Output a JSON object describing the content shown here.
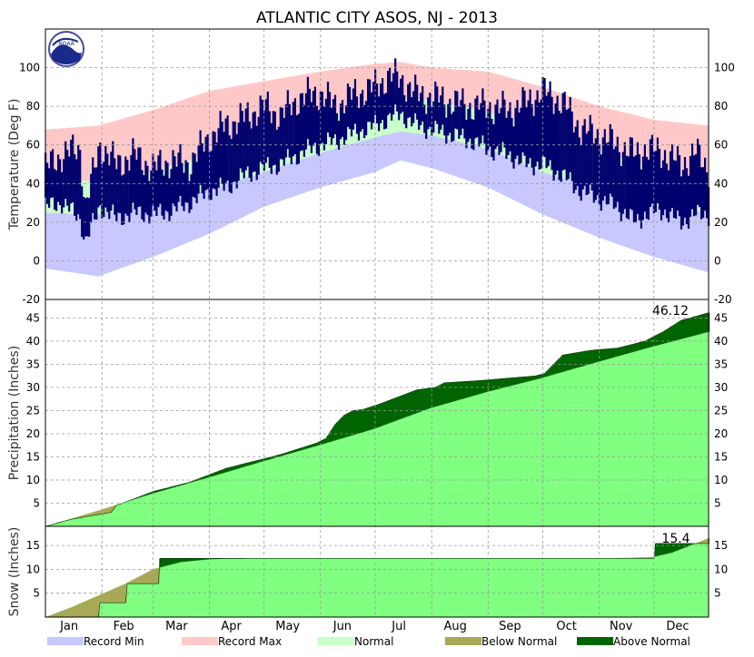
{
  "title": "ATLANTIC CITY  ASOS, NJ - 2013",
  "logo_text": "NOAA",
  "colors": {
    "record_min": "#c8c8ff",
    "record_max": "#ffc8c8",
    "normal_band": "#c8ffc8",
    "normal_fill": "#80ff80",
    "below_normal": "#a8a855",
    "above_normal": "#006400",
    "observed": "#00006e",
    "grid": "#999999"
  },
  "months": [
    "Jan",
    "Feb",
    "Mar",
    "Apr",
    "May",
    "Jun",
    "Jul",
    "Aug",
    "Sep",
    "Oct",
    "Nov",
    "Dec"
  ],
  "legend": [
    {
      "label": "Record Min",
      "color": "#c8c8ff"
    },
    {
      "label": "Record Max",
      "color": "#ffc8c8"
    },
    {
      "label": "Normal",
      "color": "#c8ffc8"
    },
    {
      "label": "Below Normal",
      "color": "#a8a855"
    },
    {
      "label": "Above Normal",
      "color": "#006400"
    }
  ],
  "chart_data": [
    {
      "type": "area",
      "panel": "temperature",
      "ylabel": "Temperature (Deg F)",
      "ylim": [
        -20,
        120
      ],
      "yticks": [
        -20,
        0,
        20,
        40,
        60,
        80,
        100
      ],
      "grid": true,
      "x_unit": "day of year",
      "xlim": [
        1,
        365
      ],
      "normal_high_days": [
        1,
        30,
        60,
        91,
        121,
        152,
        182,
        196,
        213,
        244,
        274,
        305,
        335,
        365
      ],
      "normal_high": [
        42,
        41,
        46,
        55,
        65,
        74,
        82,
        84,
        83,
        77,
        67,
        57,
        47,
        42
      ],
      "normal_low_days": [
        1,
        30,
        60,
        91,
        121,
        152,
        182,
        196,
        213,
        244,
        274,
        305,
        335,
        365
      ],
      "normal_low": [
        25,
        24,
        29,
        37,
        46,
        56,
        64,
        67,
        65,
        58,
        46,
        37,
        29,
        25
      ],
      "record_high_days": [
        1,
        30,
        60,
        91,
        121,
        152,
        182,
        196,
        213,
        244,
        274,
        305,
        335,
        365
      ],
      "record_high": [
        68,
        70,
        78,
        88,
        93,
        98,
        102,
        103,
        100,
        98,
        90,
        80,
        73,
        70
      ],
      "record_low_days": [
        1,
        30,
        60,
        91,
        121,
        152,
        182,
        196,
        213,
        244,
        274,
        305,
        335,
        365
      ],
      "record_low": [
        -4,
        -8,
        2,
        14,
        28,
        38,
        46,
        52,
        48,
        38,
        24,
        12,
        2,
        -6
      ],
      "observed_high_days": [
        1,
        10,
        20,
        23,
        31,
        40,
        50,
        60,
        70,
        80,
        91,
        100,
        110,
        121,
        130,
        140,
        152,
        160,
        170,
        182,
        190,
        196,
        205,
        213,
        225,
        235,
        244,
        255,
        265,
        274,
        285,
        295,
        305,
        315,
        325,
        330,
        340,
        350,
        358,
        365
      ],
      "observed_high": [
        48,
        55,
        58,
        28,
        60,
        50,
        55,
        48,
        52,
        50,
        64,
        70,
        74,
        80,
        75,
        84,
        87,
        80,
        86,
        90,
        96,
        94,
        86,
        85,
        82,
        80,
        80,
        78,
        82,
        88,
        82,
        68,
        65,
        60,
        55,
        58,
        56,
        50,
        56,
        48
      ],
      "observed_low_days": [
        1,
        10,
        20,
        23,
        31,
        40,
        50,
        60,
        70,
        80,
        91,
        100,
        110,
        121,
        130,
        140,
        152,
        160,
        170,
        182,
        190,
        196,
        205,
        213,
        225,
        235,
        244,
        255,
        265,
        274,
        285,
        295,
        305,
        315,
        325,
        330,
        340,
        350,
        358,
        365
      ],
      "observed_low": [
        28,
        30,
        22,
        10,
        28,
        22,
        25,
        24,
        26,
        30,
        36,
        38,
        44,
        48,
        50,
        55,
        60,
        62,
        66,
        70,
        74,
        76,
        70,
        68,
        65,
        62,
        58,
        55,
        50,
        50,
        44,
        36,
        32,
        28,
        20,
        24,
        26,
        20,
        24,
        24
      ]
    },
    {
      "type": "area",
      "panel": "precipitation",
      "ylabel": "Precipitation (Inches)",
      "ylim": [
        0,
        49
      ],
      "yticks": [
        5,
        10,
        15,
        20,
        25,
        30,
        35,
        40,
        45
      ],
      "grid": true,
      "annotation": "46.12",
      "x_unit": "day of year",
      "xlim": [
        1,
        365
      ],
      "normal_cumulative_days": [
        1,
        31,
        59,
        90,
        120,
        151,
        181,
        212,
        243,
        273,
        304,
        334,
        365
      ],
      "normal_cumulative": [
        0,
        3.5,
        7,
        10.5,
        14,
        17.5,
        21,
        25.5,
        29,
        32,
        35.5,
        38.8,
        42
      ],
      "observed_cumulative_days": [
        1,
        15,
        25,
        37,
        40,
        60,
        80,
        90,
        100,
        115,
        130,
        150,
        155,
        160,
        165,
        170,
        175,
        185,
        195,
        205,
        215,
        220,
        240,
        255,
        270,
        275,
        285,
        300,
        315,
        330,
        340,
        350,
        365
      ],
      "observed_cumulative": [
        0,
        1.5,
        2.2,
        3,
        4.5,
        7.5,
        9.5,
        11,
        12.5,
        14,
        15.5,
        18,
        19,
        22,
        24,
        25,
        25.2,
        26.5,
        28,
        29.5,
        30,
        31,
        31.5,
        32,
        32.5,
        33,
        37,
        38,
        38.5,
        40,
        42,
        44.5,
        46.12
      ]
    },
    {
      "type": "area",
      "panel": "snow",
      "ylabel": "Snow (Inches)",
      "ylim": [
        0,
        19
      ],
      "yticks": [
        5,
        10,
        15
      ],
      "grid": true,
      "annotation": "15.4",
      "x_unit": "day of year",
      "xlim": [
        1,
        365
      ],
      "normal_cumulative_days": [
        1,
        15,
        30,
        45,
        60,
        75,
        91,
        100,
        120,
        300,
        320,
        335,
        345,
        355,
        365
      ],
      "normal_cumulative": [
        0,
        2,
        4.5,
        7,
        10,
        11.5,
        12.1,
        12.2,
        12.3,
        12.3,
        12.4,
        12.6,
        13.5,
        15,
        16.5
      ],
      "observed_cumulative_days": [
        1,
        30,
        31,
        45,
        46,
        63,
        64,
        335,
        336,
        350,
        365
      ],
      "observed_cumulative": [
        0,
        0,
        3,
        3,
        7,
        7,
        12.3,
        12.3,
        15.4,
        15.4,
        15.4
      ]
    }
  ]
}
